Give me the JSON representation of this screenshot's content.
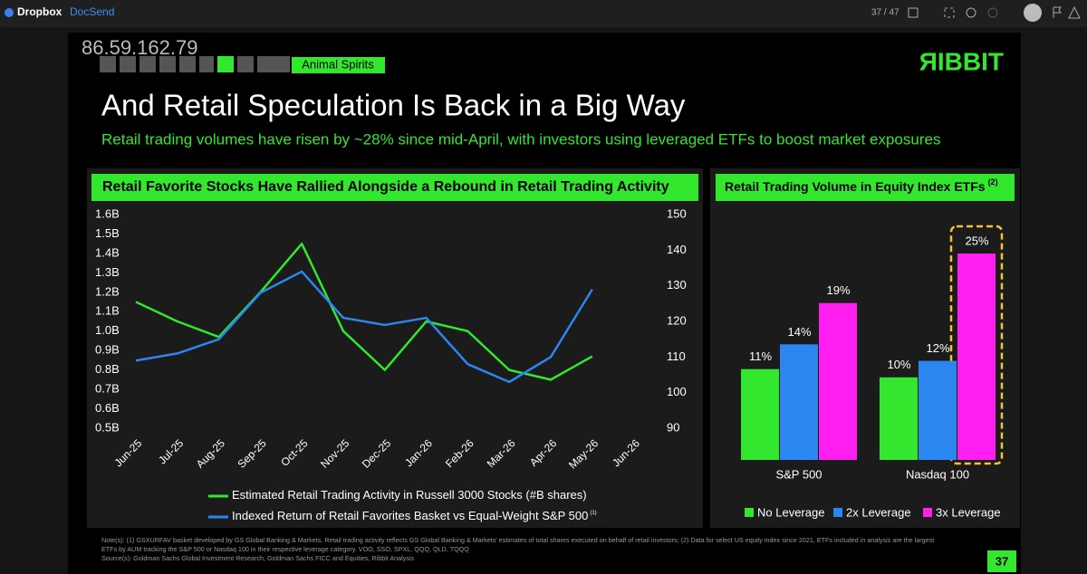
{
  "app_bar": {
    "brand": "Dropbox",
    "product": "DocSend",
    "page_counter": "37 / 47"
  },
  "slide": {
    "watermark": "86.59.162.79",
    "tag": "Animal Spirits",
    "logo": "ЯIBBIT",
    "title": "And Retail Speculation Is Back in a Big Way",
    "subtitle": "Retail trading volumes have risen by ~28% since mid-April, with investors using leveraged ETFs to boost market exposures",
    "notes": [
      "Note(s): (1) GSXURFAV basket developed by GS Global Banking & Markets. Retail trading activity reflects GS Global Banking & Markets' estimates of total shares executed on behalf of retail investors; (2) Data for select US equity index since 2021, ETFs included in analysis are the largest",
      "ETFs by AUM tracking the S&P 500 or Nasdaq 100 in their respective leverage category. VOO, SSO, SPXL, QQQ, QLD, TQQQ",
      "Source(s): Goldman Sachs Global Investment Research, Goldman Sachs FICC and Equities, Ribbit Analysis"
    ],
    "page_number": "37"
  },
  "chart_data": [
    {
      "type": "line",
      "title": "Retail Favorite Stocks Have Rallied Alongside a Rebound in Retail Trading Activity",
      "categories": [
        "Jun-25",
        "Jul-25",
        "Aug-25",
        "Sep-25",
        "Oct-25",
        "Nov-25",
        "Dec-25",
        "Jan-26",
        "Feb-26",
        "Mar-26",
        "Apr-26",
        "May-26",
        "Jun-26"
      ],
      "series": [
        {
          "name": "Estimated Retail Trading Activity in Russell 3000 Stocks (#B shares)",
          "color": "#33e62e",
          "values": [
            1.15,
            1.05,
            0.97,
            1.2,
            1.45,
            1.0,
            0.8,
            1.05,
            1.0,
            0.8,
            0.75,
            0.87,
            null
          ]
        },
        {
          "name": "Indexed Return of Retail Favorites Basket vs Equal-Weight S&P 500",
          "name_note": "(1)",
          "color": "#2b86f0",
          "axis": "y2",
          "values": [
            109,
            111,
            115,
            128,
            134,
            121,
            119,
            121,
            108,
            103,
            110,
            129,
            null
          ]
        }
      ],
      "ylim": [
        0.5,
        1.6
      ],
      "yticks": [
        {
          "value": 0.5,
          "label": "0.5B"
        },
        {
          "value": 0.6,
          "label": "0.6B"
        },
        {
          "value": 0.7,
          "label": "0.7B"
        },
        {
          "value": 0.8,
          "label": "0.8B"
        },
        {
          "value": 0.9,
          "label": "0.9B"
        },
        {
          "value": 1.0,
          "label": "1.0B"
        },
        {
          "value": 1.1,
          "label": "1.1B"
        },
        {
          "value": 1.2,
          "label": "1.2B"
        },
        {
          "value": 1.3,
          "label": "1.3B"
        },
        {
          "value": 1.4,
          "label": "1.4B"
        },
        {
          "value": 1.5,
          "label": "1.5B"
        },
        {
          "value": 1.6,
          "label": "1.6B"
        }
      ],
      "y2lim": [
        90,
        150
      ],
      "y2ticks": [
        90,
        100,
        110,
        120,
        130,
        140,
        150
      ],
      "grid": false
    },
    {
      "type": "bar",
      "title": "Retail Trading Volume in Equity Index ETFs",
      "title_note": "(2)",
      "categories": [
        "S&P 500",
        "Nasdaq 100"
      ],
      "series": [
        {
          "name": "No Leverage",
          "color": "#33e62e",
          "values": [
            11,
            10
          ],
          "value_labels": [
            "11%",
            "10%"
          ]
        },
        {
          "name": "2x Leverage",
          "color": "#2b86f0",
          "values": [
            14,
            12
          ],
          "value_labels": [
            "14%",
            "12%"
          ]
        },
        {
          "name": "3x Leverage",
          "color": "#ff1ef0",
          "values": [
            19,
            25
          ],
          "value_labels": [
            "19%",
            "25%"
          ]
        }
      ]
    }
  ]
}
